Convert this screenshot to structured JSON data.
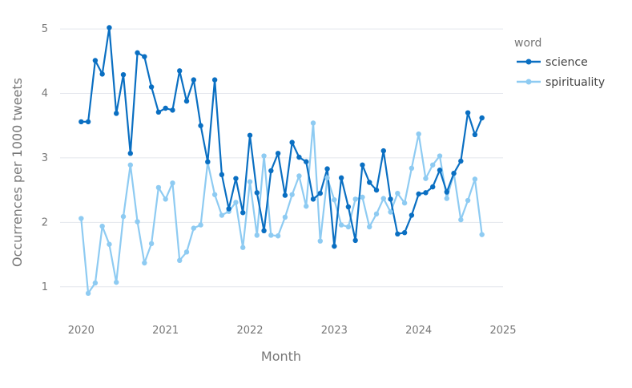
{
  "chart_data": {
    "type": "line",
    "xlabel": "Month",
    "ylabel": "Occurrences per 1000 tweets",
    "x_tick_labels": [
      "2020",
      "2021",
      "2022",
      "2023",
      "2024",
      "2025"
    ],
    "y_tick_labels": [
      "1",
      "2",
      "3",
      "4",
      "5"
    ],
    "ylim": [
      0.5,
      5.2
    ],
    "xlim": [
      "2019-10",
      "2025-01"
    ],
    "grid": "horizontal",
    "legend": {
      "title": "word",
      "position": "top-right"
    },
    "x": [
      "2020-01",
      "2020-02",
      "2020-03",
      "2020-04",
      "2020-05",
      "2020-06",
      "2020-07",
      "2020-08",
      "2020-09",
      "2020-10",
      "2020-11",
      "2020-12",
      "2021-01",
      "2021-02",
      "2021-03",
      "2021-04",
      "2021-05",
      "2021-06",
      "2021-07",
      "2021-08",
      "2021-09",
      "2021-10",
      "2021-11",
      "2021-12",
      "2022-01",
      "2022-02",
      "2022-03",
      "2022-04",
      "2022-05",
      "2022-06",
      "2022-07",
      "2022-08",
      "2022-09",
      "2022-10",
      "2022-11",
      "2022-12",
      "2023-01",
      "2023-02",
      "2023-03",
      "2023-04",
      "2023-05",
      "2023-06",
      "2023-07",
      "2023-08",
      "2023-09",
      "2023-10",
      "2023-11",
      "2023-12",
      "2024-01",
      "2024-02",
      "2024-03",
      "2024-04",
      "2024-05",
      "2024-06",
      "2024-07",
      "2024-08",
      "2024-09",
      "2024-10"
    ],
    "series": [
      {
        "name": "science",
        "color": "#0a6fc2",
        "values": [
          3.56,
          3.56,
          4.51,
          4.3,
          5.02,
          3.69,
          4.29,
          3.07,
          4.63,
          4.57,
          4.1,
          3.71,
          3.77,
          3.74,
          4.35,
          3.88,
          4.21,
          3.5,
          2.94,
          4.21,
          2.74,
          2.21,
          2.68,
          2.15,
          3.35,
          2.46,
          1.87,
          2.8,
          3.07,
          2.42,
          3.24,
          3.01,
          2.94,
          2.36,
          2.45,
          2.83,
          1.63,
          2.69,
          2.24,
          1.72,
          2.89,
          2.62,
          2.5,
          3.11,
          2.36,
          1.82,
          1.84,
          2.11,
          2.44,
          2.46,
          2.55,
          2.81,
          2.47,
          2.76,
          2.95,
          3.7,
          3.36,
          3.62
        ]
      },
      {
        "name": "spirituality",
        "color": "#8ecbf2",
        "values": [
          2.06,
          0.9,
          1.06,
          1.94,
          1.66,
          1.07,
          2.09,
          2.89,
          2.01,
          1.37,
          1.67,
          2.54,
          2.36,
          2.61,
          1.41,
          1.54,
          1.91,
          1.96,
          2.93,
          2.43,
          2.11,
          2.17,
          2.31,
          1.61,
          2.63,
          1.8,
          3.03,
          1.8,
          1.79,
          2.08,
          2.43,
          2.72,
          2.25,
          3.54,
          1.71,
          2.69,
          2.35,
          1.96,
          1.93,
          2.36,
          2.39,
          1.93,
          2.13,
          2.37,
          2.16,
          2.45,
          2.3,
          2.84,
          3.37,
          2.68,
          2.89,
          3.03,
          2.37,
          2.76,
          2.04,
          2.34,
          2.67,
          1.81
        ]
      }
    ]
  }
}
